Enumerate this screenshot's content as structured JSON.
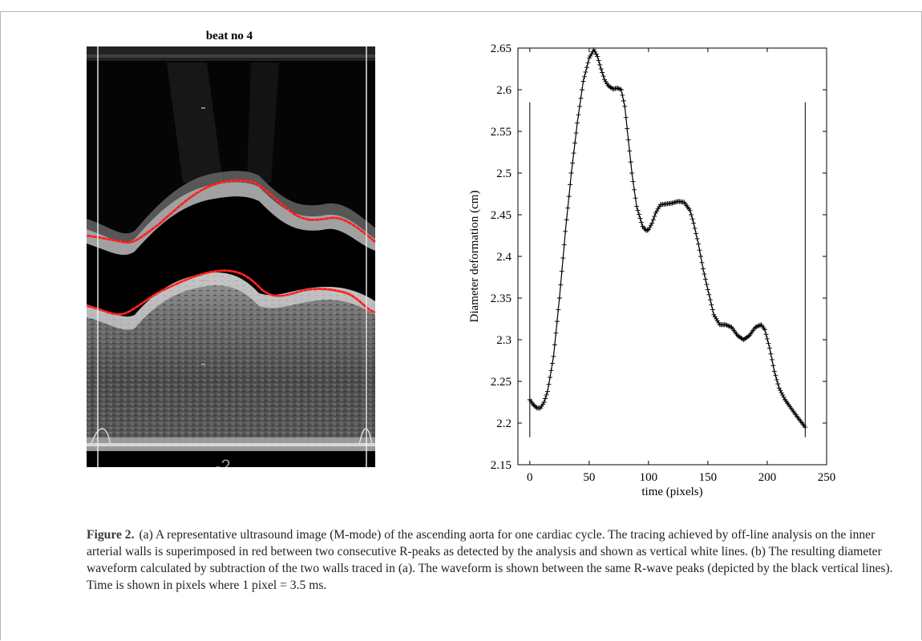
{
  "panel_a": {
    "title": "beat no 4",
    "overlay_number": "-2"
  },
  "chart_data": {
    "type": "line",
    "title": "",
    "xlabel": "time (pixels)",
    "ylabel": "Diameter deformation (cm)",
    "xlim": [
      -10,
      250
    ],
    "ylim": [
      2.15,
      2.65
    ],
    "xticks": [
      0,
      50,
      100,
      150,
      200,
      250
    ],
    "yticks": [
      2.15,
      2.2,
      2.25,
      2.3,
      2.35,
      2.4,
      2.45,
      2.5,
      2.55,
      2.6,
      2.65
    ],
    "series": [
      {
        "marker": "+",
        "color": "#000000",
        "x": [
          0,
          3,
          6,
          9,
          12,
          15,
          20,
          25,
          30,
          35,
          40,
          45,
          50,
          54,
          57,
          60,
          63,
          66,
          70,
          74,
          77,
          80,
          83,
          86,
          90,
          95,
          98,
          100,
          103,
          106,
          110,
          115,
          120,
          125,
          130,
          135,
          138,
          142,
          146,
          150,
          155,
          160,
          165,
          170,
          175,
          180,
          185,
          190,
          195,
          198,
          202,
          206,
          210,
          215,
          220,
          225,
          232
        ],
        "y": [
          2.228,
          2.222,
          2.218,
          2.218,
          2.225,
          2.238,
          2.28,
          2.35,
          2.43,
          2.5,
          2.56,
          2.61,
          2.638,
          2.648,
          2.64,
          2.625,
          2.612,
          2.605,
          2.601,
          2.602,
          2.6,
          2.58,
          2.54,
          2.5,
          2.46,
          2.436,
          2.431,
          2.432,
          2.44,
          2.452,
          2.462,
          2.463,
          2.464,
          2.466,
          2.465,
          2.455,
          2.44,
          2.415,
          2.385,
          2.36,
          2.33,
          2.318,
          2.318,
          2.315,
          2.305,
          2.3,
          2.305,
          2.315,
          2.318,
          2.312,
          2.29,
          2.262,
          2.242,
          2.228,
          2.218,
          2.208,
          2.195
        ]
      }
    ],
    "vertical_lines_x": [
      0,
      232
    ],
    "grid": false,
    "legend": "none"
  },
  "caption": {
    "label": "Figure 2.",
    "text": "(a) A representative ultrasound image (M-mode) of the ascending aorta for one cardiac cycle. The tracing achieved by off-line analysis on the inner arterial walls is superimposed in red between two consecutive R-peaks as detected by the analysis and shown as vertical white lines. (b) The resulting diameter waveform calculated by subtraction of the two walls traced in (a). The waveform is shown between the same R-wave peaks (depicted by the black vertical lines). Time is shown in pixels where 1 pixel = 3.5 ms."
  }
}
